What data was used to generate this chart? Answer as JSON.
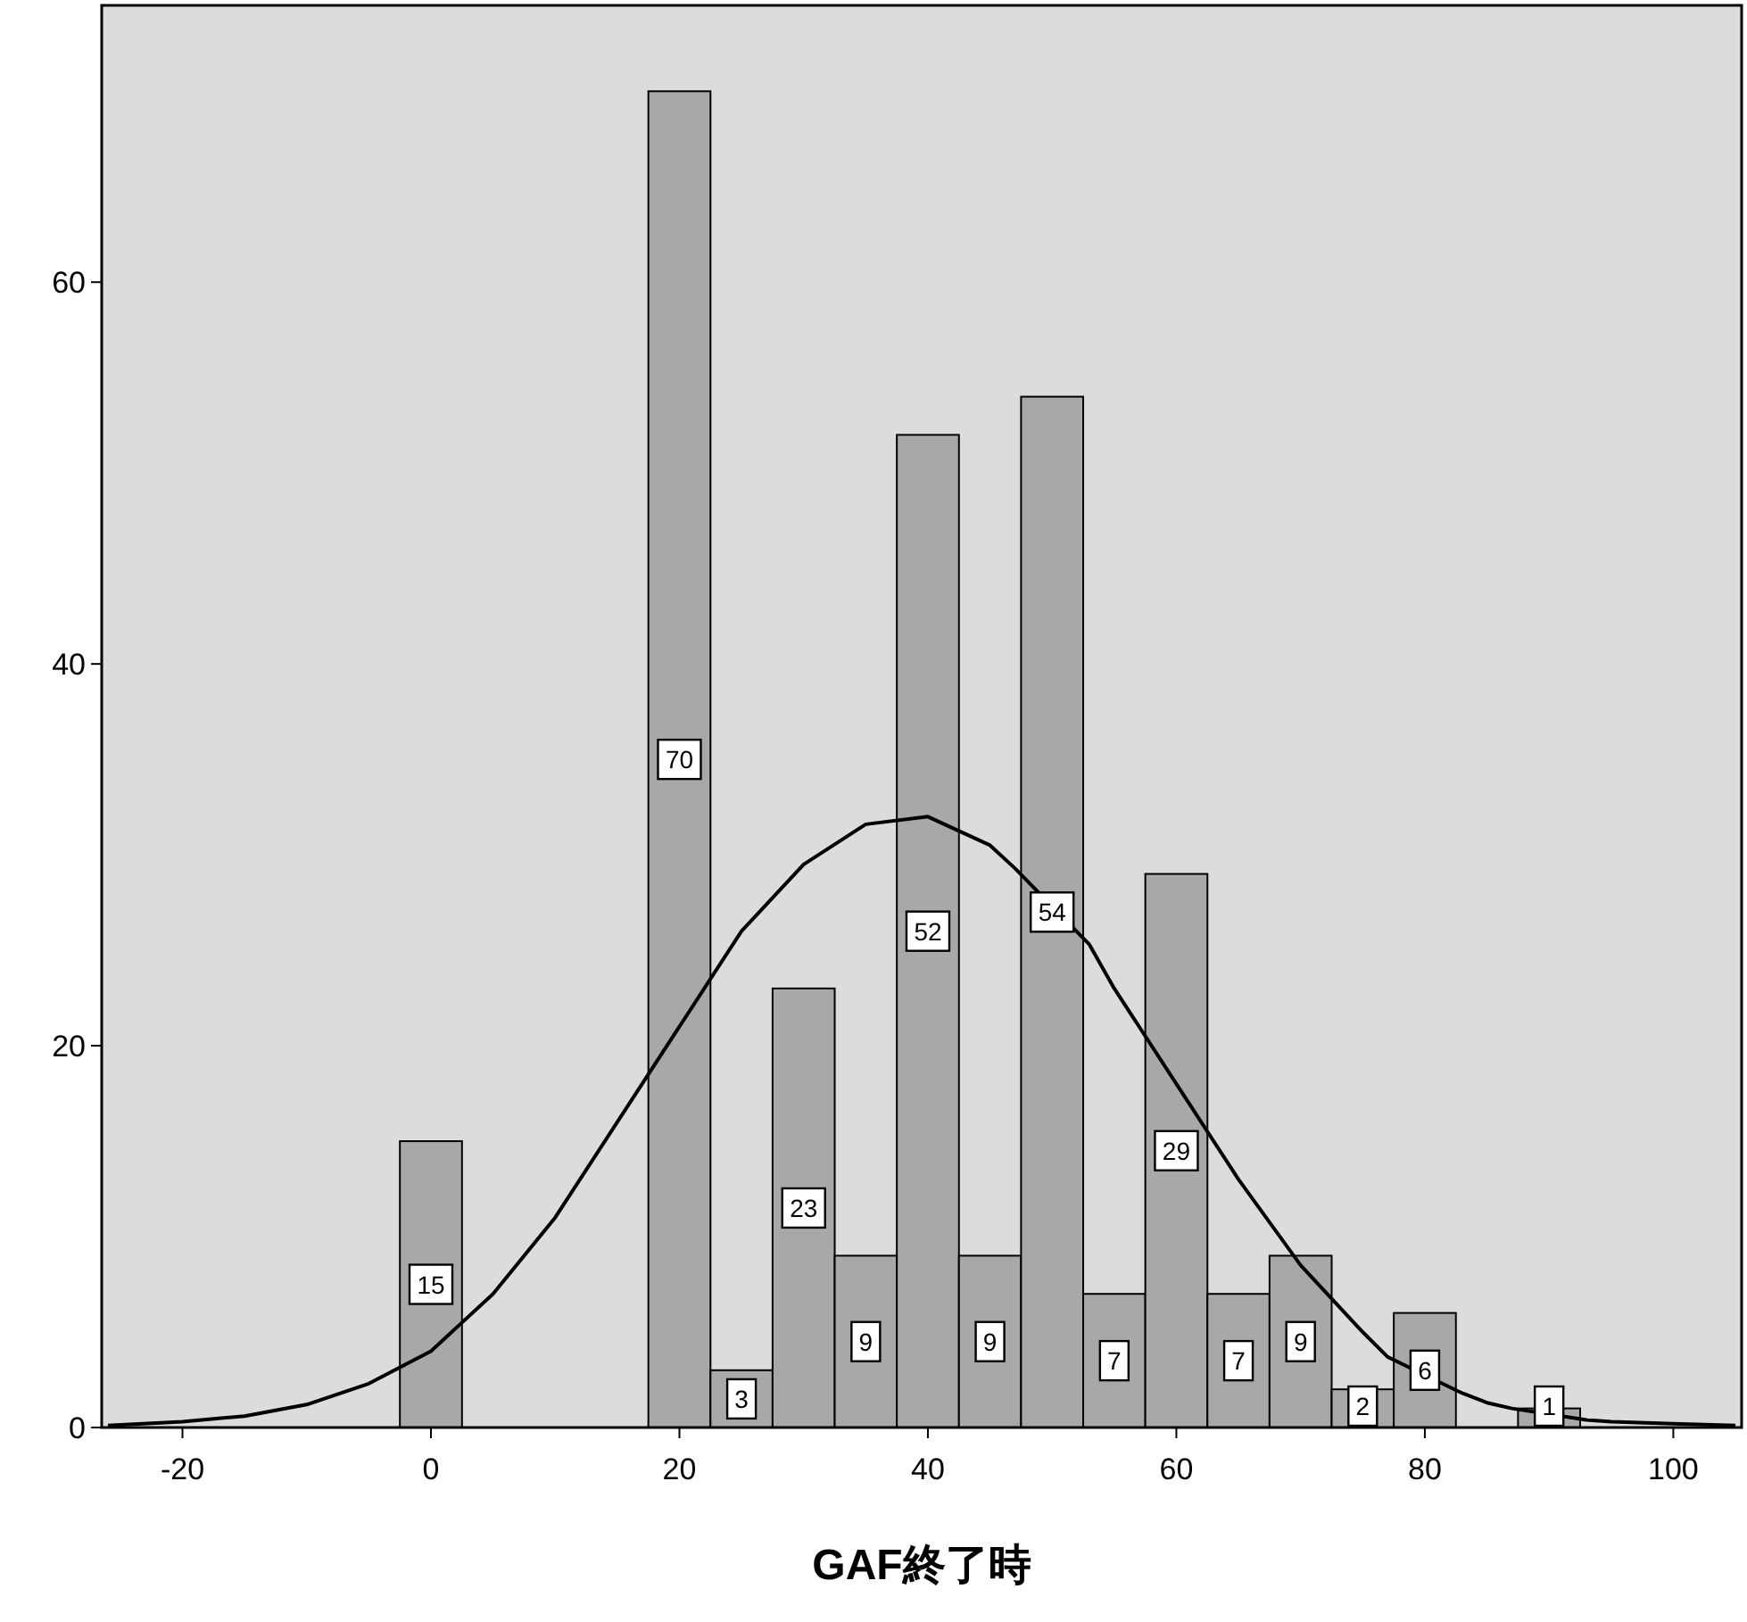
{
  "chart_data": {
    "type": "histogram",
    "xlabel": "GAF終了時",
    "bins": [
      -2.5,
      2.5,
      7.5,
      12.5,
      17.5,
      22.5,
      27.5,
      32.5,
      37.5,
      42.5,
      47.5,
      52.5,
      57.5,
      62.5,
      67.5,
      72.5,
      77.5,
      82.5,
      87.5,
      92.5
    ],
    "values": [
      15,
      0,
      0,
      0,
      70,
      3,
      23,
      9,
      52,
      9,
      54,
      7,
      29,
      7,
      9,
      2,
      6,
      0,
      1
    ],
    "value_labels": [
      "15",
      null,
      null,
      null,
      "70",
      "3",
      "23",
      "9",
      "52",
      "9",
      "54",
      "7",
      "29",
      "7",
      "9",
      "2",
      "6",
      null,
      "1"
    ],
    "color": "#a8a8a8",
    "series": [
      {
        "type": "line",
        "color": "#000000",
        "x": [
          -26,
          -20,
          -15,
          -10,
          -5,
          0,
          5,
          10,
          15,
          20,
          25,
          30,
          35,
          40,
          45,
          47,
          53,
          55,
          60,
          65,
          70,
          75,
          77,
          83,
          85,
          87,
          93,
          95,
          100,
          105
        ],
        "values": [
          0.1,
          0.3,
          0.6,
          1.2,
          2.3,
          4,
          7,
          11,
          16,
          21,
          26,
          29.5,
          31.6,
          32,
          30.5,
          29.3,
          25.3,
          23,
          18,
          13,
          8.5,
          5,
          3.7,
          1.8,
          1.3,
          1.0,
          0.4,
          0.3,
          0.2,
          0.1
        ]
      }
    ],
    "xlim": [
      -26.5,
      105.5
    ],
    "ylim": [
      0,
      74.5
    ],
    "xticks": [
      -20,
      0,
      20,
      40,
      60,
      80,
      100
    ],
    "yticks": [
      0,
      20,
      40,
      60
    ]
  }
}
